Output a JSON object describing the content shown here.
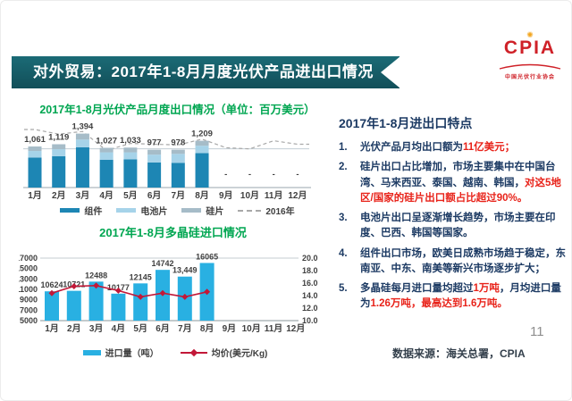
{
  "banner": {
    "title": "对外贸易：2017年1-8月月度光伏产品进出口情况",
    "bg_color": "#16606c"
  },
  "logo": {
    "name": "CPIA",
    "subtitle": "中国光伏行业协会",
    "color": "#cf2128"
  },
  "chart_data": [
    {
      "type": "bar",
      "subtype": "stacked-bars-with-comparison-line",
      "title": "2017年1-8月光伏产品月度出口情况（单位：百万美元）",
      "categories": [
        "1月",
        "2月",
        "3月",
        "4月",
        "5月",
        "6月",
        "7月",
        "8月",
        "9月",
        "10月",
        "11月",
        "12月"
      ],
      "totals": [
        1061,
        1119,
        1394,
        1027,
        1033,
        977,
        978,
        1209,
        null,
        null,
        null,
        null
      ],
      "total_labels": [
        "1,061",
        "1,119",
        "1,394",
        "1,027",
        "1,033",
        "977",
        "978",
        "1,209",
        "-",
        "-",
        "-",
        "-"
      ],
      "series": [
        {
          "name": "组件",
          "color": "#1d86b4",
          "values": [
            775,
            810,
            1040,
            720,
            730,
            650,
            640,
            890,
            0,
            0,
            0,
            0
          ],
          "estimated_split": true
        },
        {
          "name": "电池片",
          "color": "#a6d3e9",
          "values": [
            170,
            180,
            200,
            190,
            180,
            200,
            230,
            190,
            0,
            0,
            0,
            0
          ],
          "estimated_split": true
        },
        {
          "name": "硅片",
          "color": "#a6bcc8",
          "values": [
            116,
            129,
            154,
            117,
            123,
            127,
            108,
            129,
            0,
            0,
            0,
            0
          ],
          "estimated_split": true
        }
      ],
      "line_series": {
        "name": "2016年",
        "style": "dashed",
        "color": "#a8a8a8",
        "estimated": true,
        "values": [
          1500,
          1380,
          1450,
          960,
          1140,
          1120,
          1100,
          1250,
          1030,
          1000,
          1210,
          1120
        ]
      },
      "ylim": [
        0,
        1800
      ],
      "gridline_at": 1000,
      "legend_position": "bottom",
      "label_color": "#3f3f3f"
    },
    {
      "type": "bar",
      "subtype": "bars-with-price-line-dual-axis",
      "title": "2017年1-8月多晶硅进口情况",
      "categories": [
        "1月",
        "2月",
        "3月",
        "4月",
        "5月",
        "6月",
        "7月",
        "8月",
        "9月",
        "10月",
        "11月",
        "12月"
      ],
      "bar_series": {
        "name": "进口量（吨）",
        "color": "#29b0e2",
        "values": [
          10624,
          10721,
          12488,
          10177,
          12145,
          14742,
          13449,
          16065
        ],
        "labels": [
          "10624",
          "10721",
          "12488",
          "10177",
          "12145",
          "14742",
          "13,449",
          "16065"
        ]
      },
      "line_series": {
        "name": "均价(美元/Kg)",
        "color": "#c21838",
        "marker": "diamond",
        "estimated": true,
        "values": [
          14.4,
          15.5,
          15.6,
          14.8,
          13.8,
          14.4,
          13.8,
          14.6
        ]
      },
      "left_axis": {
        "min": 5000,
        "max": 17000,
        "step": 2000,
        "ticks": [
          "5000",
          "7000",
          "9000",
          "11000",
          "13000",
          "15000",
          "17000"
        ]
      },
      "right_axis": {
        "min": 10,
        "max": 20,
        "step": 2,
        "ticks": [
          "10.0",
          "12.0",
          "14.0",
          "16.0",
          "18.0",
          "20.0"
        ]
      },
      "legend_position": "bottom",
      "label_color": "#3f3f3f"
    }
  ],
  "panel": {
    "heading": "2017年1-8月进出口特点",
    "items": [
      {
        "num": "1.",
        "segments": [
          {
            "t": "光伏产品月均出口额为"
          },
          {
            "t": "11亿美元；",
            "red": true
          }
        ]
      },
      {
        "num": "2.",
        "segments": [
          {
            "t": "硅片出口占比增加，市场主要集中在中国台湾、马来西亚、泰国、越南、韩国，"
          },
          {
            "t": "对这5地区/国家的硅片出口额占比超过90%。",
            "red": true
          }
        ]
      },
      {
        "num": "3.",
        "segments": [
          {
            "t": "电池片出口呈逐渐增长趋势，市场主要在印度、巴西、韩国等国家。"
          }
        ]
      },
      {
        "num": "4.",
        "segments": [
          {
            "t": "组件出口市场，欧美日成熟市场趋于稳定，东南亚、中东、南美等新兴市场逐步扩大；"
          }
        ]
      },
      {
        "num": "5.",
        "segments": [
          {
            "t": "多晶硅每月进口量均超过"
          },
          {
            "t": "1万吨",
            "red": true
          },
          {
            "t": "，月均进口量为"
          },
          {
            "t": "1.26万吨，最高达到1.6万吨。",
            "red": true
          }
        ]
      }
    ]
  },
  "footer": {
    "source": "数据来源：海关总署，CPIA",
    "page": "11"
  }
}
